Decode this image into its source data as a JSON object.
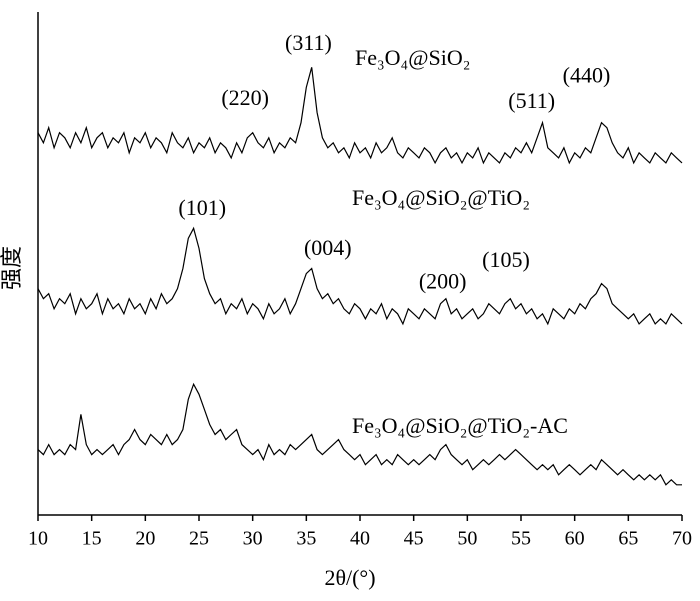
{
  "chart_data": {
    "type": "line",
    "x_label": "2θ/(°)",
    "y_label": "强度",
    "xlim": [
      10,
      70
    ],
    "xticks": [
      10,
      15,
      20,
      25,
      30,
      35,
      40,
      45,
      50,
      55,
      60,
      65,
      70
    ],
    "ylim": [
      0,
      100
    ],
    "x": [
      10,
      10.5,
      11,
      11.5,
      12,
      12.5,
      13,
      13.5,
      14,
      14.5,
      15,
      15.5,
      16,
      16.5,
      17,
      17.5,
      18,
      18.5,
      19,
      19.5,
      20,
      20.5,
      21,
      21.5,
      22,
      22.5,
      23,
      23.5,
      24,
      24.5,
      25,
      25.5,
      26,
      26.5,
      27,
      27.5,
      28,
      28.5,
      29,
      29.5,
      30,
      30.5,
      31,
      31.5,
      32,
      32.5,
      33,
      33.5,
      34,
      34.5,
      35,
      35.5,
      36,
      36.5,
      37,
      37.5,
      38,
      38.5,
      39,
      39.5,
      40,
      40.5,
      41,
      41.5,
      42,
      42.5,
      43,
      43.5,
      44,
      44.5,
      45,
      45.5,
      46,
      46.5,
      47,
      47.5,
      48,
      48.5,
      49,
      49.5,
      50,
      50.5,
      51,
      51.5,
      52,
      52.5,
      53,
      53.5,
      54,
      54.5,
      55,
      55.5,
      56,
      56.5,
      57,
      57.5,
      58,
      58.5,
      59,
      59.5,
      60,
      60.5,
      61,
      61.5,
      62,
      62.5,
      63,
      63.5,
      64,
      64.5,
      65,
      65.5,
      66,
      66.5,
      67,
      67.5,
      68,
      68.5,
      69,
      69.5,
      70
    ],
    "series": [
      {
        "name": "Fe₃O₄@SiO₂",
        "color": "#000000",
        "values": [
          76,
          74,
          77,
          73,
          76,
          75,
          73,
          76,
          74,
          77,
          73,
          75,
          76,
          73,
          75,
          74,
          76,
          72,
          75,
          74,
          76,
          73,
          75,
          74,
          72,
          76,
          74,
          73,
          75,
          72,
          74,
          73,
          75,
          72,
          74,
          73,
          71,
          74,
          72,
          75,
          76,
          74,
          73,
          75,
          72,
          74,
          73,
          75,
          74,
          78,
          85,
          89,
          80,
          75,
          73,
          74,
          72,
          73,
          71,
          74,
          72,
          73,
          71,
          74,
          72,
          73,
          75,
          72,
          71,
          73,
          72,
          71,
          73,
          72,
          70,
          72,
          73,
          71,
          72,
          70,
          72,
          71,
          73,
          70,
          72,
          71,
          70,
          72,
          71,
          73,
          72,
          74,
          72,
          75,
          78,
          73,
          72,
          71,
          73,
          70,
          72,
          71,
          73,
          72,
          75,
          78,
          77,
          74,
          72,
          71,
          73,
          70,
          72,
          71,
          70,
          72,
          71,
          70,
          72,
          71,
          70
        ]
      },
      {
        "name": "Fe₃O₄@SiO₂@TiO₂",
        "color": "#000000",
        "values": [
          45,
          43,
          44,
          41,
          43,
          42,
          44,
          40,
          43,
          41,
          42,
          44,
          40,
          43,
          41,
          42,
          40,
          43,
          41,
          42,
          40,
          43,
          41,
          44,
          42,
          43,
          45,
          49,
          55,
          57,
          53,
          47,
          44,
          42,
          43,
          40,
          42,
          41,
          43,
          40,
          42,
          41,
          39,
          42,
          40,
          41,
          43,
          40,
          42,
          45,
          48,
          49,
          45,
          43,
          44,
          42,
          43,
          41,
          40,
          42,
          41,
          39,
          41,
          40,
          42,
          39,
          41,
          40,
          38,
          41,
          40,
          39,
          41,
          40,
          39,
          42,
          43,
          40,
          41,
          39,
          40,
          41,
          39,
          40,
          42,
          41,
          40,
          42,
          43,
          41,
          42,
          40,
          41,
          39,
          40,
          38,
          41,
          40,
          39,
          41,
          40,
          42,
          41,
          43,
          44,
          46,
          45,
          42,
          41,
          40,
          39,
          40,
          38,
          39,
          40,
          38,
          39,
          38,
          40,
          39,
          38
        ]
      },
      {
        "name": "Fe₃O₄@SiO₂@TiO₂-AC",
        "color": "#000000",
        "values": [
          13,
          12,
          14,
          12,
          13,
          12,
          14,
          13,
          20,
          14,
          12,
          13,
          12,
          13,
          14,
          12,
          14,
          15,
          17,
          15,
          14,
          16,
          15,
          14,
          16,
          14,
          15,
          17,
          23,
          26,
          24,
          21,
          18,
          16,
          17,
          15,
          16,
          17,
          14,
          13,
          12,
          13,
          11,
          14,
          12,
          13,
          12,
          14,
          13,
          14,
          15,
          16,
          13,
          12,
          13,
          14,
          15,
          13,
          12,
          11,
          12,
          10,
          11,
          12,
          10,
          11,
          10,
          12,
          11,
          10,
          11,
          10,
          11,
          12,
          11,
          13,
          14,
          12,
          11,
          10,
          11,
          9,
          10,
          11,
          10,
          11,
          12,
          11,
          12,
          13,
          12,
          11,
          10,
          9,
          10,
          9,
          10,
          8,
          9,
          10,
          9,
          8,
          9,
          10,
          9,
          11,
          10,
          9,
          8,
          9,
          8,
          7,
          8,
          7,
          8,
          7,
          8,
          6,
          7,
          6,
          6
        ]
      }
    ],
    "annotations": [
      {
        "text": "(220)",
        "x": 29.3,
        "y": 82.5
      },
      {
        "text": "(311)",
        "x": 35.2,
        "y": 93.4
      },
      {
        "text": "(511)",
        "x": 56,
        "y": 81.9
      },
      {
        "text": "(440)",
        "x": 61.1,
        "y": 87
      },
      {
        "text": "(101)",
        "x": 25.3,
        "y": 60.6
      },
      {
        "text": "(004)",
        "x": 37,
        "y": 52.7
      },
      {
        "text": "(200)",
        "x": 47.7,
        "y": 46
      },
      {
        "text": "(105)",
        "x": 53.6,
        "y": 50.3
      }
    ]
  }
}
